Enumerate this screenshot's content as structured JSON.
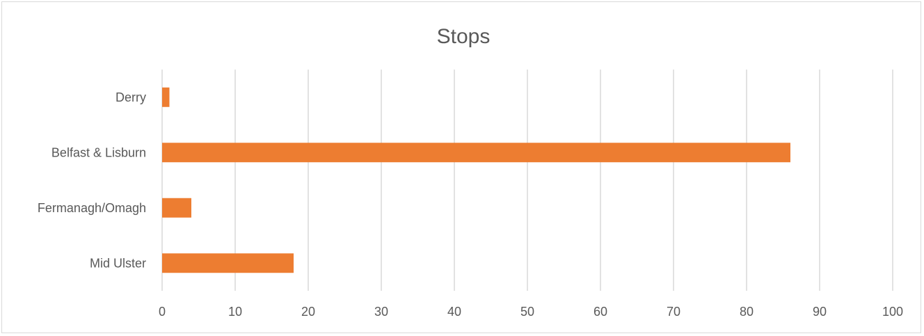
{
  "chart_data": {
    "type": "bar",
    "orientation": "horizontal",
    "title": "Stops",
    "xlabel": "",
    "ylabel": "",
    "categories": [
      "Derry",
      "Belfast & Lisburn",
      "Fermanagh/Omagh",
      "Mid Ulster"
    ],
    "values": [
      1,
      86,
      4,
      18
    ],
    "xlim": [
      0,
      100
    ],
    "x_ticks": [
      0,
      10,
      20,
      30,
      40,
      50,
      60,
      70,
      80,
      90,
      100
    ],
    "grid": true,
    "legend": "none",
    "bar_color": "#ED7D31",
    "grid_color": "#D9D9D9",
    "text_color": "#595959"
  }
}
